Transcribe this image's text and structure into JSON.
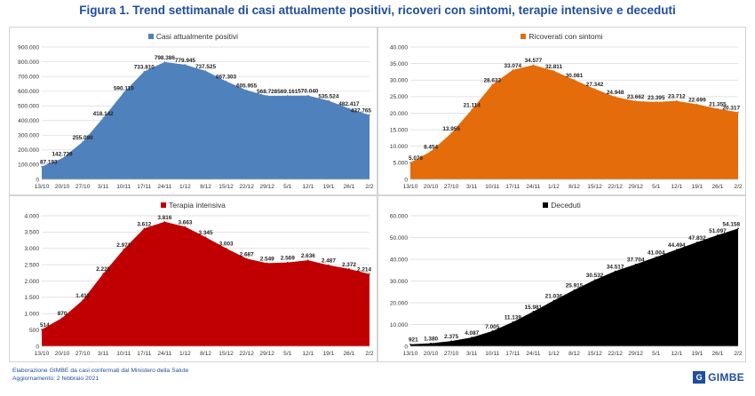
{
  "title": "Figura 1. Trend settimanale di casi attualmente positivi, ricoveri con sintomi, terapie intensive e deceduti",
  "footer": {
    "line1": "Elaborazione GIMBE da casi confermati dal Ministero della Salute",
    "line2": "Aggiornamento: 2 febbraio 2021"
  },
  "logo": {
    "text": "GIMBE"
  },
  "chart_data": [
    {
      "type": "area",
      "legend": "Casi attualmente positivi",
      "color": "#4f81bd",
      "categories": [
        "13/10",
        "20/10",
        "27/10",
        "3/11",
        "10/11",
        "17/11",
        "24/11",
        "1/12",
        "8/12",
        "15/12",
        "22/12",
        "29/12",
        "5/1",
        "12/1",
        "19/1",
        "26/1",
        "2/2"
      ],
      "values": [
        87193,
        142739,
        255090,
        418142,
        590110,
        733810,
        798386,
        779945,
        737525,
        667303,
        605955,
        568728,
        569161,
        570040,
        535524,
        482417,
        437765
      ],
      "labels": [
        "87.193",
        "142.739",
        "255.090",
        "418.142",
        "590.110",
        "733.810",
        "798.386",
        "779.945",
        "737.525",
        "667.303",
        "605.955",
        "568.728",
        "569.161",
        "570.040",
        "535.524",
        "482.417",
        "437.765"
      ],
      "ylim": [
        0,
        900000
      ],
      "yticks": [
        0,
        100000,
        200000,
        300000,
        400000,
        500000,
        600000,
        700000,
        800000,
        900000
      ],
      "ytick_labels": [
        "0",
        "100.000",
        "200.000",
        "300.000",
        "400.000",
        "500.000",
        "600.000",
        "700.000",
        "800.000",
        "900.000"
      ],
      "grid": true
    },
    {
      "type": "area",
      "legend": "Ricoverati con sintomi",
      "color": "#e46c0a",
      "categories": [
        "13/10",
        "20/10",
        "27/10",
        "3/11",
        "10/11",
        "17/11",
        "24/11",
        "1/12",
        "8/12",
        "15/12",
        "22/12",
        "29/12",
        "5/1",
        "12/1",
        "19/1",
        "26/1",
        "2/2"
      ],
      "values": [
        5076,
        8454,
        13955,
        21114,
        28633,
        33074,
        34577,
        32811,
        30081,
        27342,
        24948,
        23662,
        23395,
        23712,
        22699,
        21355,
        20317
      ],
      "labels": [
        "5.076",
        "8.454",
        "13.955",
        "21.114",
        "28.633",
        "33.074",
        "34.577",
        "32.811",
        "30.081",
        "27.342",
        "24.948",
        "23.662",
        "23.395",
        "23.712",
        "22.699",
        "21.355",
        "20.317"
      ],
      "ylim": [
        0,
        40000
      ],
      "yticks": [
        0,
        5000,
        10000,
        15000,
        20000,
        25000,
        30000,
        35000,
        40000
      ],
      "ytick_labels": [
        "0",
        "5.000",
        "10.000",
        "15.000",
        "20.000",
        "25.000",
        "30.000",
        "35.000",
        "40.000"
      ],
      "grid": true
    },
    {
      "type": "area",
      "legend": "Terapia intensiva",
      "color": "#c00000",
      "categories": [
        "13/10",
        "20/10",
        "27/10",
        "3/11",
        "10/11",
        "17/11",
        "24/11",
        "1/12",
        "8/12",
        "15/12",
        "22/12",
        "29/12",
        "5/1",
        "12/1",
        "19/1",
        "26/1",
        "2/2"
      ],
      "values": [
        514,
        870,
        1411,
        2225,
        2971,
        3612,
        3816,
        3663,
        3345,
        3003,
        2687,
        2549,
        2569,
        2636,
        2487,
        2372,
        2214
      ],
      "labels": [
        "514",
        "870",
        "1.411",
        "2.225",
        "2.971",
        "3.612",
        "3.816",
        "3.663",
        "3.345",
        "3.003",
        "2.687",
        "2.549",
        "2.569",
        "2.636",
        "2.487",
        "2.372",
        "2.214"
      ],
      "ylim": [
        0,
        4000
      ],
      "yticks": [
        0,
        500,
        1000,
        1500,
        2000,
        2500,
        3000,
        3500,
        4000
      ],
      "ytick_labels": [
        "0",
        "500",
        "1.000",
        "1.500",
        "2.000",
        "2.500",
        "3.000",
        "3.500",
        "4.000"
      ],
      "grid": true
    },
    {
      "type": "area",
      "legend": "Deceduti",
      "color": "#000000",
      "categories": [
        "13/10",
        "20/10",
        "27/10",
        "3/11",
        "10/11",
        "17/11",
        "24/11",
        "1/12",
        "8/12",
        "15/12",
        "22/12",
        "29/12",
        "5/1",
        "12/1",
        "19/1",
        "26/1",
        "2/2"
      ],
      "values": [
        921,
        1380,
        2375,
        4087,
        7005,
        11139,
        15981,
        21036,
        25915,
        30532,
        34517,
        37704,
        41004,
        44494,
        47832,
        51097,
        54158
      ],
      "labels": [
        "921",
        "1.380",
        "2.375",
        "4.087",
        "7.005",
        "11.139",
        "15.981",
        "21.036",
        "25.915",
        "30.532",
        "34.517",
        "37.704",
        "41.004",
        "44.494",
        "47.832",
        "51.097",
        "54.158"
      ],
      "ylim": [
        0,
        60000
      ],
      "yticks": [
        0,
        10000,
        20000,
        30000,
        40000,
        50000,
        60000
      ],
      "ytick_labels": [
        "0",
        "10.000",
        "20.000",
        "30.000",
        "40.000",
        "50.000",
        "60.000"
      ],
      "grid": true
    }
  ]
}
